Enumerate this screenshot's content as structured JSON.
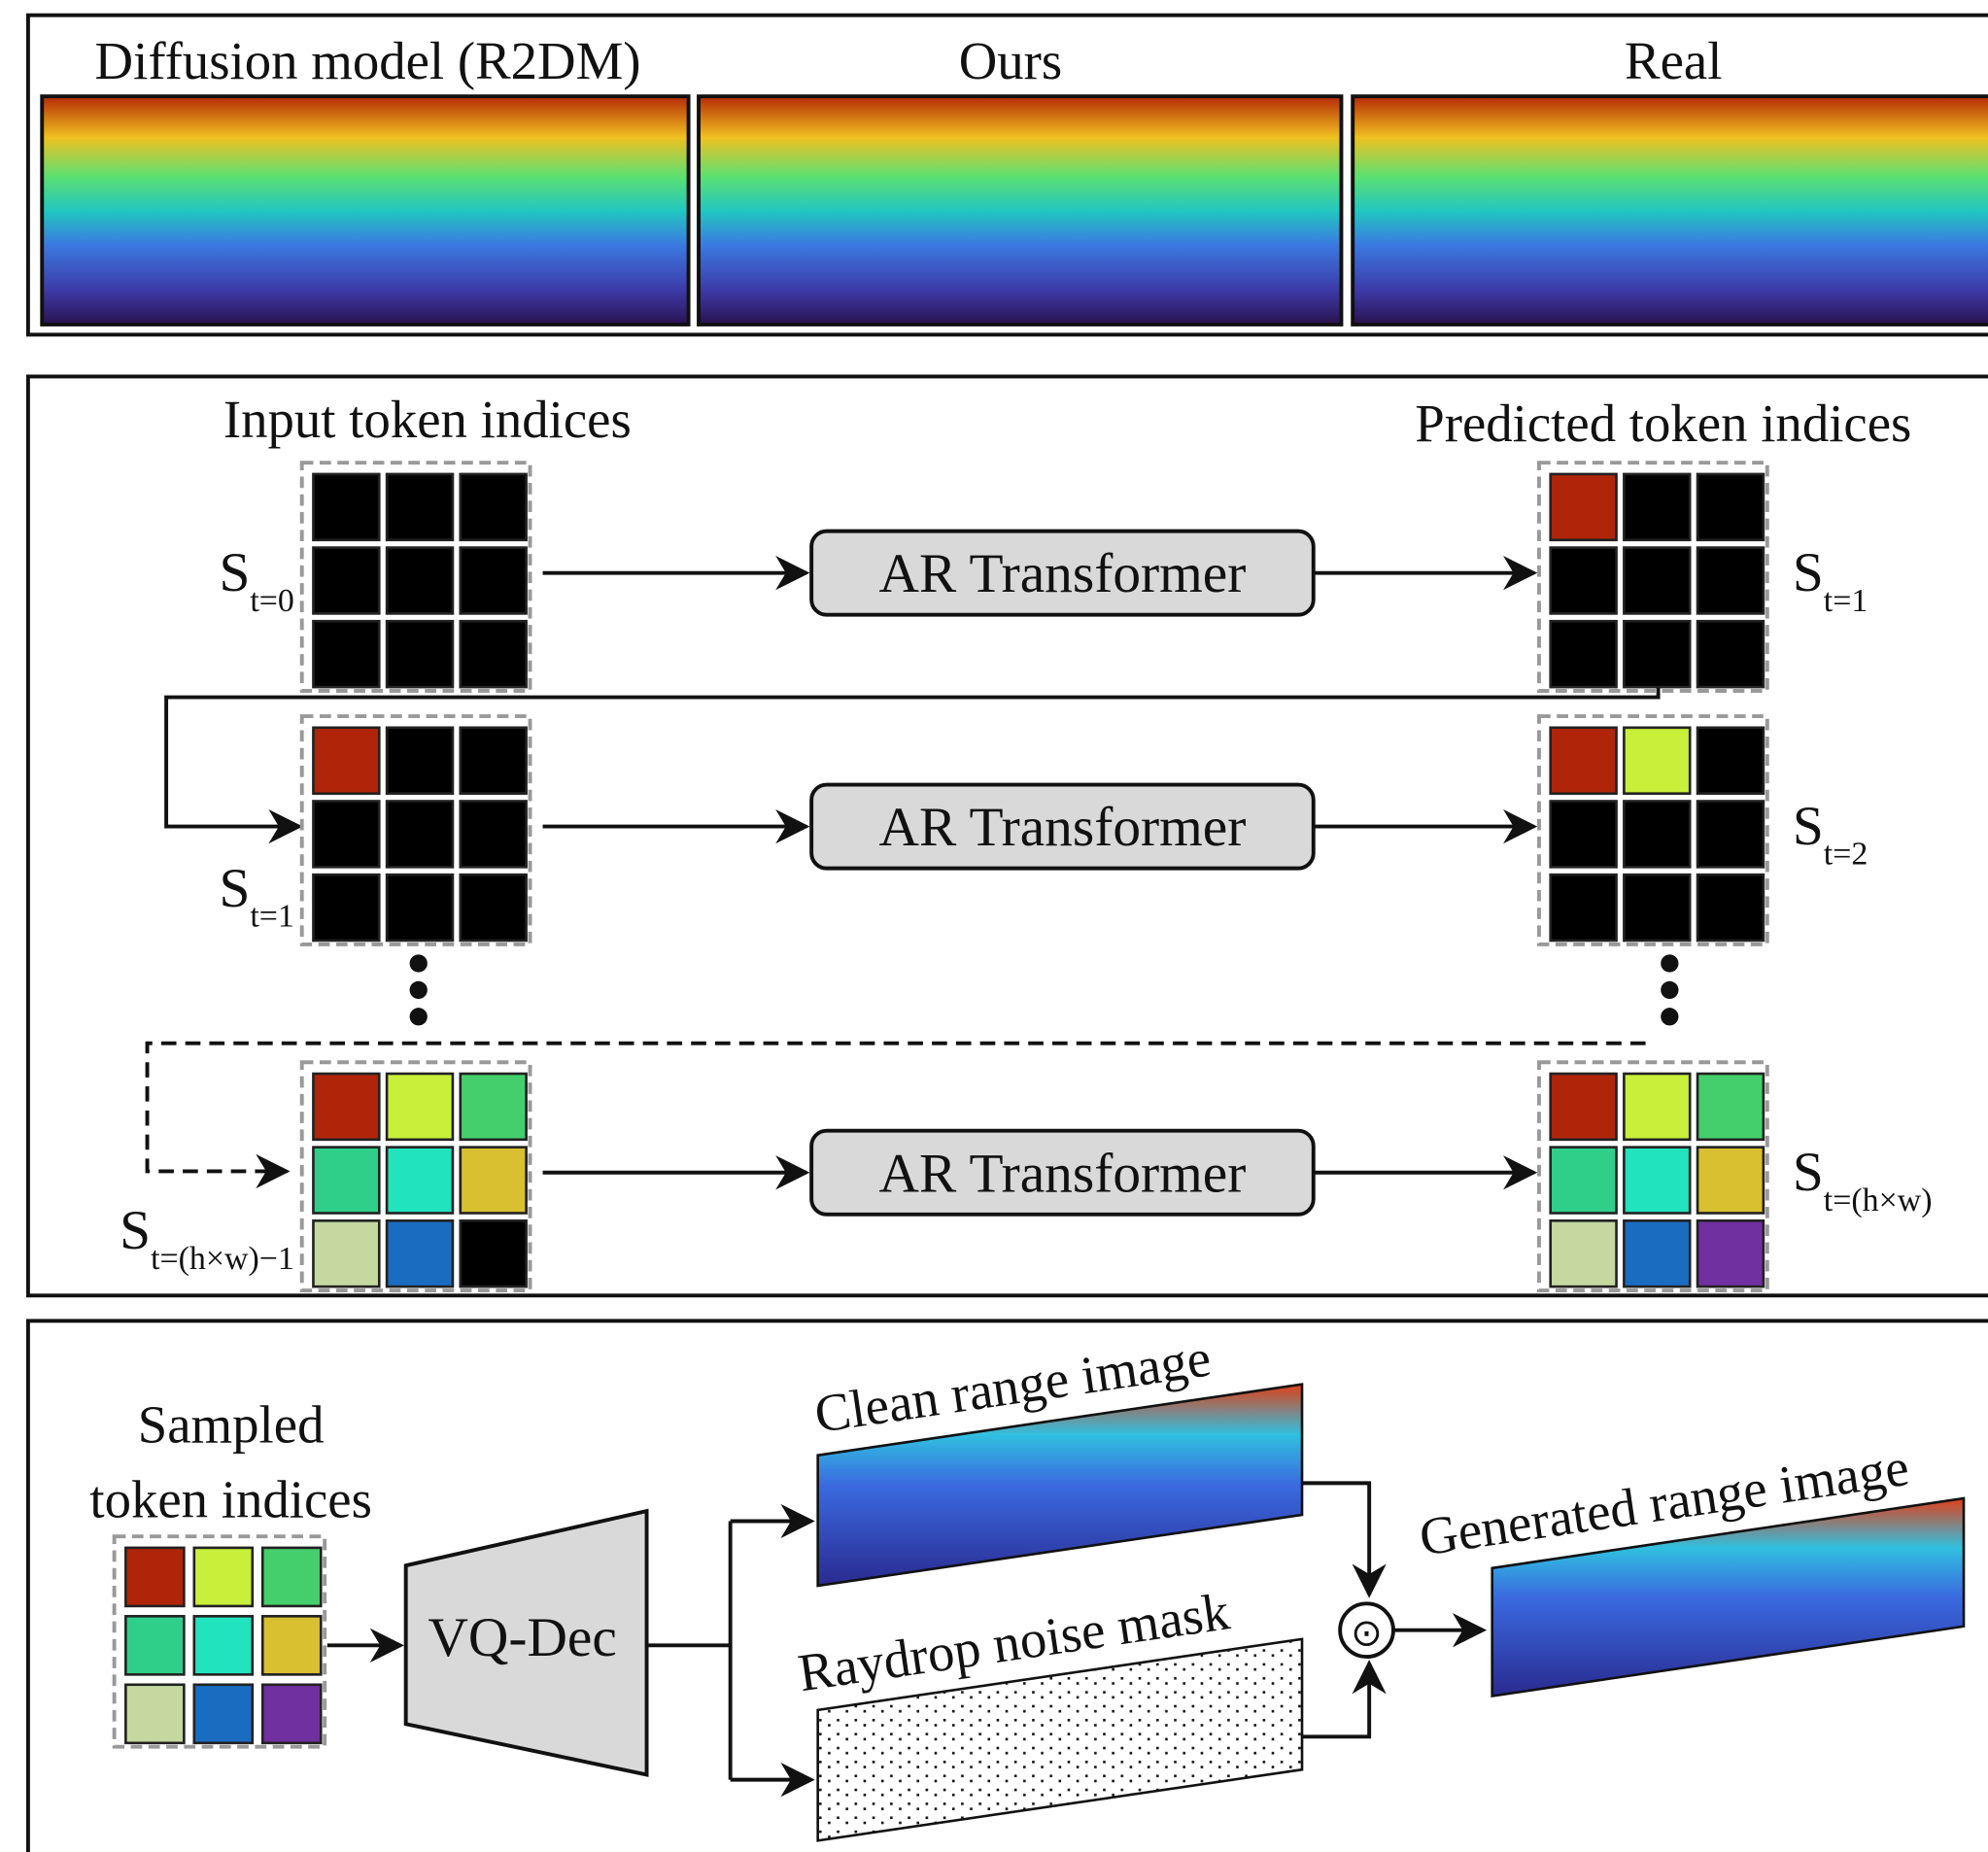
{
  "comparison": {
    "labels": [
      "Diffusion model (R2DM)",
      "Ours",
      "Real"
    ]
  },
  "pipeline": {
    "input_label": "Input token indices",
    "output_label": "Predicted token indices",
    "rows": [
      {
        "block": "AR Transformer",
        "input_state": {
          "base": "S",
          "sub": "t=0"
        },
        "output_state": {
          "base": "S",
          "sub": "t=1"
        }
      },
      {
        "block": "AR Transformer",
        "input_state": {
          "base": "S",
          "sub": "t=1"
        },
        "output_state": {
          "base": "S",
          "sub": "t=2"
        }
      },
      {
        "block": "AR Transformer",
        "input_state": {
          "base": "S",
          "sub": "t=(h×w)−1"
        },
        "output_state": {
          "base": "S",
          "sub": "t=(h×w)"
        }
      }
    ]
  },
  "decoding": {
    "sampled_label": [
      "Sampled",
      "token indices"
    ],
    "decoder": "VQ-Dec",
    "clean": "Clean range image",
    "mask": "Raydrop noise mask",
    "generated": "Generated range image",
    "operator": "⊙"
  }
}
